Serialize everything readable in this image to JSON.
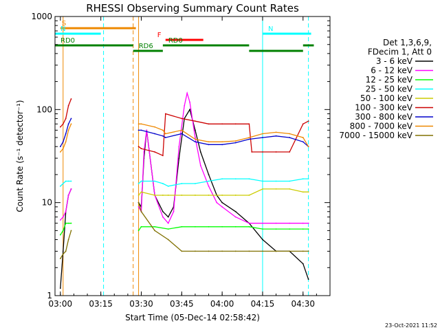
{
  "chart_data": {
    "type": "line",
    "title": "RHESSI Observing Summary Count Rates",
    "xlabel": "Start Time (05-Dec-14 02:58:42)",
    "ylabel": "Count Rate (s⁻¹ detector⁻¹)",
    "y_scale": "log",
    "ylim": [
      1,
      1000
    ],
    "x_range_minutes": [
      "02:58",
      "04:40"
    ],
    "x_ticks": [
      "03:00",
      "03:15",
      "03:30",
      "03:45",
      "04:00",
      "04:15",
      "04:30"
    ],
    "y_ticks": [
      "1",
      "10",
      "100",
      "1000"
    ],
    "timestamp": "23-Oct-2021 11:52",
    "info_lines": [
      "Det 1,3,6,9,",
      "FDecim 1, Att 0"
    ],
    "series": [
      {
        "name": "3 - 6 keV",
        "color": "#000000",
        "x": [
          "03:00",
          "03:01",
          "03:02",
          "03:03",
          "03:04",
          "03:29",
          "03:30",
          "03:31",
          "03:32",
          "03:35",
          "03:38",
          "03:40",
          "03:42",
          "03:44",
          "03:46",
          "03:48",
          "03:50",
          "03:52",
          "03:55",
          "03:58",
          "04:00",
          "04:05",
          "04:10",
          "04:15",
          "04:20",
          "04:25",
          "04:30",
          "04:32"
        ],
        "y": [
          1.2,
          3,
          8,
          12,
          14,
          10,
          9,
          30,
          60,
          12,
          8,
          7,
          9,
          30,
          80,
          100,
          60,
          35,
          20,
          12,
          10,
          8,
          6,
          4,
          3,
          3,
          2.2,
          1.5
        ]
      },
      {
        "name": "6 - 12 keV",
        "color": "#ff00ff",
        "x": [
          "03:00",
          "03:01",
          "03:02",
          "03:03",
          "03:04",
          "03:29",
          "03:30",
          "03:31",
          "03:32",
          "03:35",
          "03:38",
          "03:40",
          "03:42",
          "03:44",
          "03:46",
          "03:47",
          "03:48",
          "03:50",
          "03:52",
          "03:55",
          "03:58",
          "04:00",
          "04:05",
          "04:10",
          "04:15",
          "04:20",
          "04:25",
          "04:30",
          "04:32"
        ],
        "y": [
          6.5,
          7,
          8,
          12,
          14,
          9,
          8,
          35,
          60,
          12,
          7,
          6,
          8,
          40,
          110,
          150,
          120,
          50,
          25,
          15,
          10,
          9,
          7,
          6,
          6,
          6,
          6,
          6,
          6
        ]
      },
      {
        "name": "12 - 25 keV",
        "color": "#00ff00",
        "x": [
          "03:00",
          "03:01",
          "03:02",
          "03:03",
          "03:04",
          "03:29",
          "03:30",
          "03:35",
          "03:40",
          "03:45",
          "03:50",
          "03:55",
          "04:00",
          "04:05",
          "04:10",
          "04:15",
          "04:20",
          "04:25",
          "04:30",
          "04:32"
        ],
        "y": [
          4.5,
          5,
          6,
          6,
          6,
          5,
          5.5,
          5.5,
          5.2,
          5.5,
          5.5,
          5.5,
          5.5,
          5.5,
          5.5,
          5.2,
          5.2,
          5.2,
          5.2,
          5.2
        ]
      },
      {
        "name": "25 - 50 keV",
        "color": "#00ffff",
        "x": [
          "03:00",
          "03:01",
          "03:02",
          "03:03",
          "03:04",
          "03:29",
          "03:30",
          "03:35",
          "03:38",
          "03:40",
          "03:45",
          "03:50",
          "03:55",
          "04:00",
          "04:05",
          "04:10",
          "04:15",
          "04:20",
          "04:25",
          "04:30",
          "04:32"
        ],
        "y": [
          15,
          16,
          17,
          17,
          17,
          16,
          17,
          17,
          16,
          15,
          16,
          16,
          17,
          18,
          18,
          18,
          17,
          17,
          17,
          18,
          18
        ]
      },
      {
        "name": "50 - 100 keV",
        "color": "#cccc00",
        "x": [
          "03:29",
          "03:30",
          "03:35",
          "03:38",
          "03:40",
          "03:45",
          "03:50",
          "03:55",
          "04:00",
          "04:05",
          "04:10",
          "04:15",
          "04:20",
          "04:25",
          "04:30",
          "04:32"
        ],
        "y": [
          12,
          13,
          12,
          12,
          12,
          12,
          12,
          12,
          12,
          12,
          12,
          14,
          14,
          14,
          13,
          13
        ]
      },
      {
        "name": "100 - 300 keV",
        "color": "#cc0000",
        "x": [
          "03:00",
          "03:01",
          "03:02",
          "03:03",
          "03:04",
          "03:29",
          "03:30",
          "03:35",
          "03:38",
          "03:39",
          "03:45",
          "03:50",
          "03:55",
          "04:00",
          "04:05",
          "04:10",
          "04:11",
          "04:15",
          "04:20",
          "04:25",
          "04:30",
          "04:32"
        ],
        "y": [
          65,
          70,
          80,
          110,
          130,
          40,
          38,
          35,
          32,
          90,
          80,
          75,
          70,
          70,
          70,
          70,
          35,
          35,
          35,
          35,
          70,
          75
        ]
      },
      {
        "name": "300 - 800 keV",
        "color": "#0000cc",
        "x": [
          "03:00",
          "03:01",
          "03:02",
          "03:03",
          "03:04",
          "03:29",
          "03:30",
          "03:35",
          "03:38",
          "03:39",
          "03:45",
          "03:50",
          "03:55",
          "04:00",
          "04:05",
          "04:10",
          "04:15",
          "04:20",
          "04:25",
          "04:30",
          "04:32"
        ],
        "y": [
          40,
          45,
          55,
          70,
          80,
          60,
          60,
          55,
          52,
          50,
          55,
          45,
          42,
          42,
          44,
          48,
          50,
          52,
          50,
          45,
          40
        ]
      },
      {
        "name": "800 - 7000 keV",
        "color": "#ee8800",
        "x": [
          "03:00",
          "03:01",
          "03:02",
          "03:03",
          "03:04",
          "03:29",
          "03:30",
          "03:35",
          "03:38",
          "03:39",
          "03:45",
          "03:50",
          "03:55",
          "04:00",
          "04:05",
          "04:10",
          "04:15",
          "04:20",
          "04:25",
          "04:30",
          "04:32"
        ],
        "y": [
          35,
          38,
          45,
          60,
          70,
          70,
          70,
          65,
          60,
          55,
          60,
          48,
          45,
          45,
          46,
          50,
          55,
          57,
          55,
          50,
          40
        ]
      },
      {
        "name": "7000 - 15000 keV",
        "color": "#807000",
        "x": [
          "03:00",
          "03:01",
          "03:02",
          "03:03",
          "03:04",
          "03:29",
          "03:30",
          "03:35",
          "03:40",
          "03:45",
          "03:50",
          "03:55",
          "04:00",
          "04:05",
          "04:10",
          "04:15",
          "04:20",
          "04:25",
          "04:30",
          "04:32"
        ],
        "y": [
          2.5,
          2.8,
          3,
          4,
          5,
          10,
          8,
          5,
          4,
          3,
          3,
          3,
          3,
          3,
          3,
          3,
          3,
          3,
          3,
          3
        ]
      }
    ],
    "flags": [
      {
        "label": "S",
        "color": "#ee8800",
        "start": "03:00",
        "end": "03:28"
      },
      {
        "label": "N",
        "color": "#00ffff",
        "start": "02:58",
        "end": "03:15"
      },
      {
        "label": "N",
        "color": "#00ffff",
        "start": "04:15",
        "end": "04:33"
      },
      {
        "label": "F",
        "color": "#ff0000",
        "start": "03:39",
        "end": "03:53"
      },
      {
        "label": "RD0",
        "color": "#008000",
        "start": "02:58",
        "end": "03:27"
      },
      {
        "label": "RD6",
        "color": "#008000",
        "start": "03:27",
        "end": "03:38"
      },
      {
        "label": "RD0",
        "color": "#008000",
        "start": "03:38",
        "end": "04:10"
      },
      {
        "label": "",
        "color": "#008000",
        "start": "04:10",
        "end": "04:30"
      },
      {
        "label": "",
        "color": "#008000",
        "start": "04:30",
        "end": "04:34"
      }
    ],
    "vlines": [
      {
        "t": "03:01",
        "color": "#ee8800",
        "style": "solid"
      },
      {
        "t": "02:58",
        "color": "#00ffff",
        "style": "solid"
      },
      {
        "t": "03:16",
        "color": "#00ffff",
        "style": "dashed"
      },
      {
        "t": "03:27",
        "color": "#ee8800",
        "style": "dashed"
      },
      {
        "t": "03:29",
        "color": "#ee8800",
        "style": "solid"
      },
      {
        "t": "04:15",
        "color": "#00ffff",
        "style": "solid"
      },
      {
        "t": "04:32",
        "color": "#00ffff",
        "style": "dashed"
      }
    ]
  }
}
